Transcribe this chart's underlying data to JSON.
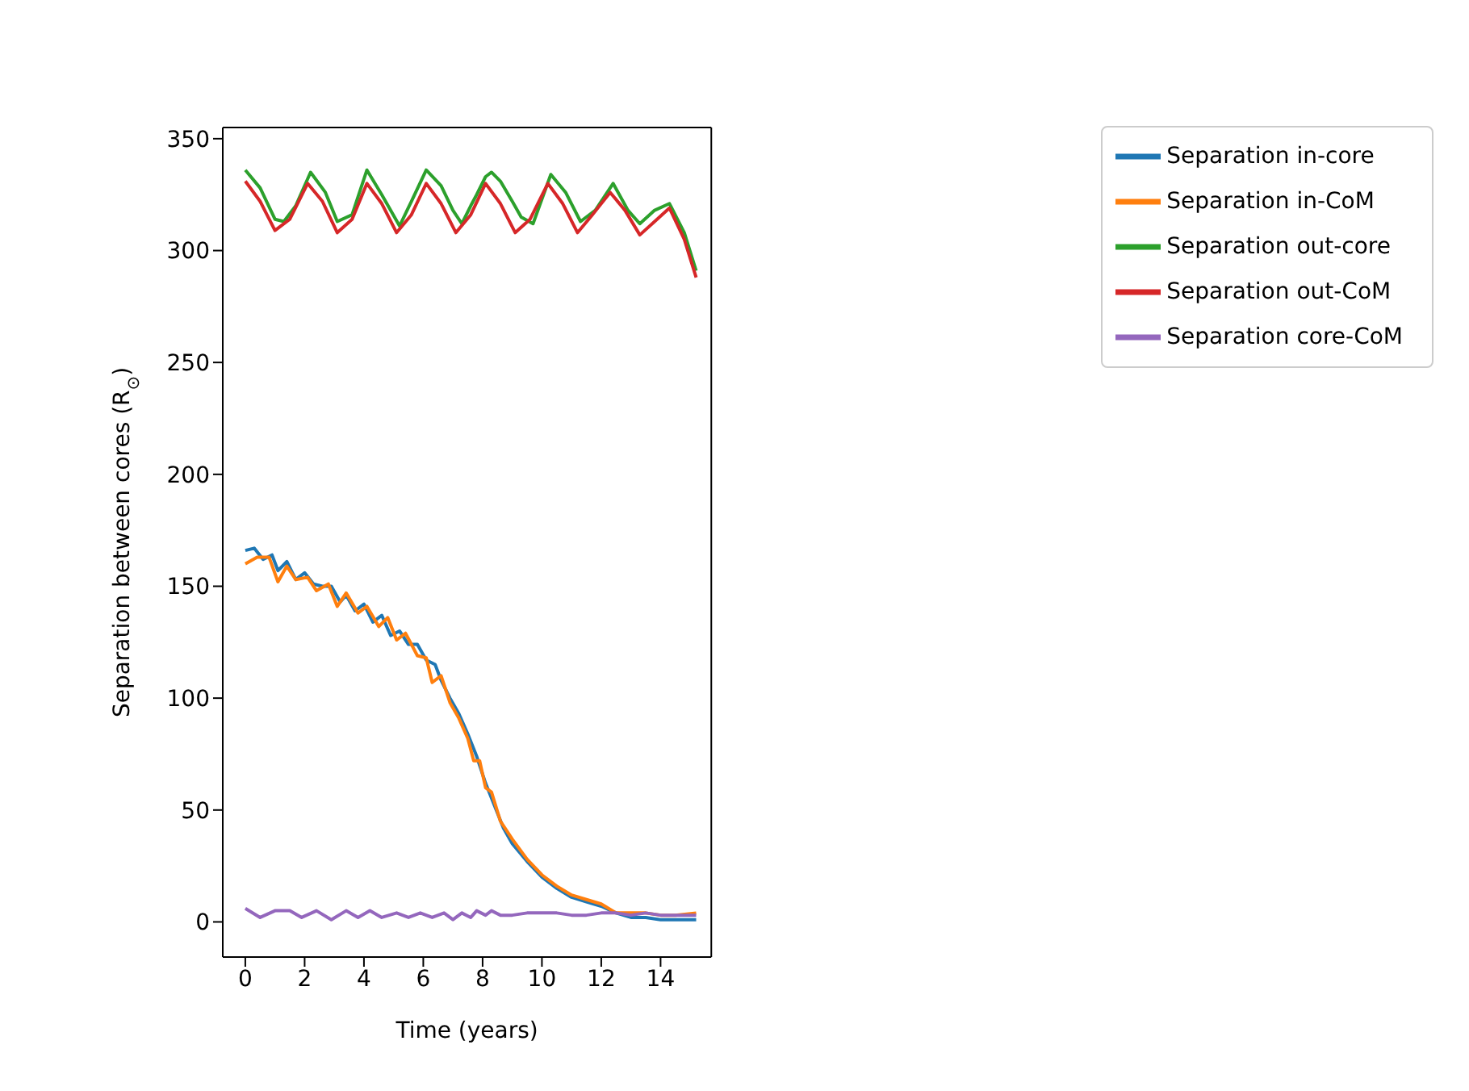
{
  "chart_data": {
    "type": "line",
    "xlabel": "Time (years)",
    "ylabel": "Separation between cores (R$_{⊙}$)",
    "xlim": [
      -0.76,
      15.71
    ],
    "ylim": [
      -15.7,
      355
    ],
    "xticks": [
      0,
      2,
      4,
      6,
      8,
      10,
      12,
      14
    ],
    "yticks": [
      0,
      50,
      100,
      150,
      200,
      250,
      300,
      350
    ],
    "grid": false,
    "legend": "top right",
    "marker": "none",
    "line_style": "solid",
    "series": [
      {
        "name": "Separation in-core",
        "color": "#1f77b4",
        "x": [
          0,
          0.3,
          0.6,
          0.9,
          1.1,
          1.4,
          1.7,
          2.0,
          2.3,
          2.6,
          2.9,
          3.2,
          3.4,
          3.7,
          4.0,
          4.3,
          4.6,
          4.9,
          5.2,
          5.5,
          5.8,
          6.1,
          6.4,
          6.6,
          6.9,
          7.2,
          7.5,
          7.8,
          8.1,
          8.4,
          8.7,
          9.0,
          9.5,
          10.0,
          10.5,
          11.0,
          11.5,
          12.0,
          12.5,
          13.0,
          13.5,
          14.0,
          14.5,
          15.2
        ],
        "values": [
          166,
          167,
          162,
          164,
          157,
          161,
          153,
          156,
          151,
          150,
          150,
          143,
          146,
          139,
          142,
          134,
          137,
          128,
          130,
          124,
          124,
          117,
          115,
          108,
          100,
          93,
          84,
          74,
          62,
          52,
          42,
          35,
          27,
          20,
          15,
          11,
          9,
          7,
          4,
          2,
          2,
          1,
          1,
          1
        ]
      },
      {
        "name": "Separation in-CoM",
        "color": "#ff7f0e",
        "x": [
          0,
          0.4,
          0.8,
          1.1,
          1.4,
          1.7,
          2.1,
          2.4,
          2.8,
          3.1,
          3.4,
          3.8,
          4.1,
          4.5,
          4.8,
          5.1,
          5.4,
          5.8,
          6.1,
          6.3,
          6.6,
          6.9,
          7.2,
          7.5,
          7.7,
          7.9,
          8.1,
          8.3,
          8.6,
          9.0,
          9.5,
          10.0,
          10.5,
          11.0,
          11.5,
          12.0,
          12.5,
          13.5,
          14.0,
          14.5,
          15.2
        ],
        "values": [
          160,
          163,
          163,
          152,
          159,
          153,
          154,
          148,
          151,
          141,
          147,
          138,
          141,
          132,
          136,
          126,
          129,
          119,
          118,
          107,
          110,
          98,
          91,
          82,
          72,
          72,
          60,
          58,
          45,
          37,
          28,
          21,
          16,
          12,
          10,
          8,
          4,
          4,
          3,
          3,
          4
        ]
      },
      {
        "name": "Separation out-core",
        "color": "#2ca02c",
        "x": [
          0,
          0.5,
          1.0,
          1.3,
          1.7,
          2.2,
          2.7,
          3.1,
          3.6,
          4.1,
          4.6,
          5.2,
          5.6,
          6.1,
          6.6,
          7.0,
          7.3,
          7.6,
          7.8,
          8.1,
          8.3,
          8.6,
          9.0,
          9.3,
          9.7,
          10.3,
          10.8,
          11.3,
          11.8,
          12.4,
          12.9,
          13.3,
          13.8,
          14.3,
          14.8,
          15.2
        ],
        "values": [
          336,
          328,
          314,
          313,
          320,
          335,
          326,
          313,
          316,
          336,
          325,
          311,
          322,
          336,
          329,
          318,
          312,
          320,
          325,
          333,
          335,
          331,
          322,
          315,
          312,
          334,
          326,
          313,
          318,
          330,
          318,
          312,
          318,
          321,
          308,
          291
        ]
      },
      {
        "name": "Separation out-CoM",
        "color": "#d62728",
        "x": [
          0,
          0.5,
          1.0,
          1.5,
          2.1,
          2.6,
          3.1,
          3.6,
          4.1,
          4.6,
          5.1,
          5.6,
          6.1,
          6.6,
          7.1,
          7.6,
          8.1,
          8.6,
          9.1,
          9.6,
          10.2,
          10.7,
          11.2,
          11.7,
          12.3,
          12.8,
          13.3,
          13.8,
          14.3,
          14.8,
          15.2
        ],
        "values": [
          331,
          322,
          309,
          314,
          330,
          322,
          308,
          314,
          330,
          321,
          308,
          316,
          330,
          321,
          308,
          316,
          330,
          321,
          308,
          314,
          330,
          321,
          308,
          316,
          326,
          318,
          307,
          313,
          319,
          305,
          288
        ]
      },
      {
        "name": "Separation core-CoM",
        "color": "#9467bd",
        "x": [
          0,
          0.5,
          1.0,
          1.5,
          1.9,
          2.4,
          2.9,
          3.4,
          3.8,
          4.2,
          4.6,
          5.1,
          5.5,
          5.9,
          6.3,
          6.7,
          7.0,
          7.3,
          7.6,
          7.8,
          8.1,
          8.3,
          8.6,
          9.0,
          9.5,
          10.0,
          10.5,
          11.0,
          11.5,
          12.0,
          12.5,
          13.0,
          13.5,
          14.0,
          14.5,
          15.2
        ],
        "values": [
          6,
          2,
          5,
          5,
          2,
          5,
          1,
          5,
          2,
          5,
          2,
          4,
          2,
          4,
          2,
          4,
          1,
          4,
          2,
          5,
          3,
          5,
          3,
          3,
          4,
          4,
          4,
          3,
          3,
          4,
          4,
          3,
          4,
          3,
          3,
          3
        ]
      }
    ]
  }
}
